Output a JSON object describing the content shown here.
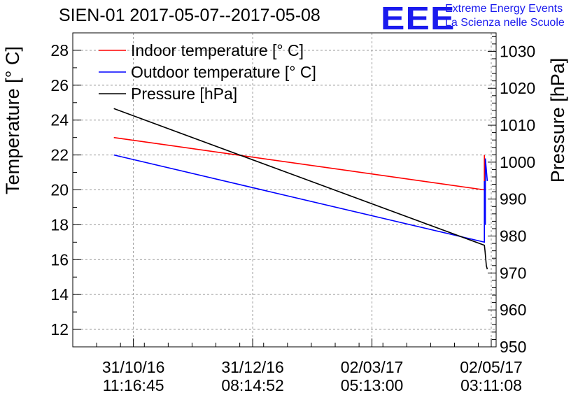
{
  "header": {
    "title": "SIEN-01 2017-05-07--2017-05-08",
    "logo_text": "EEE",
    "logo_line1": "Extreme Energy Events",
    "logo_line2": "La Scienza nelle Scuole"
  },
  "chart_data": {
    "type": "line",
    "ylabel": "Temperature [° C]",
    "y2label": "Pressure [hPa]",
    "xlabel": "",
    "ylim": [
      11,
      29
    ],
    "y2lim": [
      950,
      1035
    ],
    "xlim": [
      0,
      216.5
    ],
    "yticks": [
      "12",
      "14",
      "16",
      "18",
      "20",
      "22",
      "24",
      "26",
      "28"
    ],
    "y2ticks": [
      "950",
      "960",
      "970",
      "980",
      "990",
      "1000",
      "1010",
      "1020",
      "1030"
    ],
    "xticks": [
      {
        "line1": "31/10/16",
        "line2": "11:16:45",
        "x": 31
      },
      {
        "line1": "31/12/16",
        "line2": "08:14:52",
        "x": 92
      },
      {
        "line1": "02/03/17",
        "line2": "05:13:00",
        "x": 153
      },
      {
        "line1": "02/05/17",
        "line2": "03:11:08",
        "x": 214
      }
    ],
    "grid": true,
    "legend_position": "top-left",
    "series": [
      {
        "name": "Indoor temperature [° C]",
        "color": "#ff0000",
        "axis": "left",
        "x": [
          21,
          210.5,
          210.5,
          211.0
        ],
        "y": [
          23,
          20,
          22,
          20
        ]
      },
      {
        "name": "Outdoor temperature [° C]",
        "color": "#0000ff",
        "axis": "left",
        "x": [
          21,
          210.5,
          210.5,
          211.0,
          211.0,
          212.0
        ],
        "y": [
          22,
          17,
          20.5,
          18,
          21.8,
          20.5
        ]
      },
      {
        "name": "Pressure [hPa]",
        "color": "#000000",
        "axis": "right",
        "x": [
          21,
          210.5,
          210.8,
          211.5,
          212.0
        ],
        "y": [
          1014.5,
          977.5,
          976,
          972,
          971
        ]
      }
    ]
  }
}
